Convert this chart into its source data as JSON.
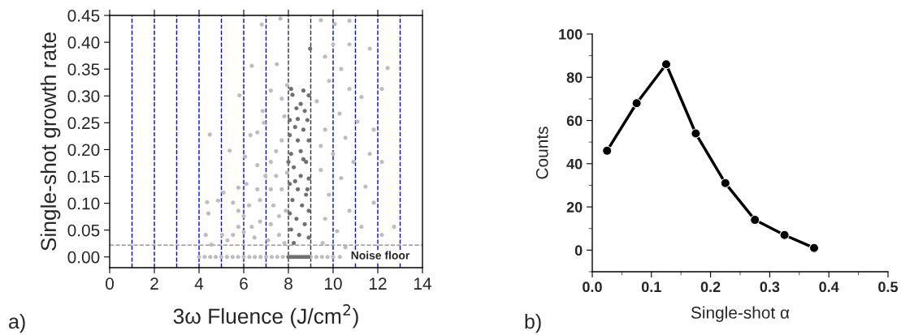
{
  "chart_data": [
    {
      "type": "scatter",
      "xlabel": "3ω Fluence (J/cm$^{2}$)",
      "ylabel": "Single-shot growth rate",
      "annotations": [
        "a)",
        "Noise floor"
      ],
      "xlim": [
        0,
        14
      ],
      "ylim": [
        -0.02,
        0.45
      ],
      "xticks": [
        0,
        2,
        4,
        6,
        8,
        10,
        12,
        14
      ],
      "yticks": [
        {
          "value": 0,
          "label": "0.00"
        },
        {
          "value": 0.05,
          "label": "0.05"
        },
        {
          "value": 0.1,
          "label": "0.10"
        },
        {
          "value": 0.15,
          "label": "0.15"
        },
        {
          "value": 0.2,
          "label": "0.20"
        },
        {
          "value": 0.25,
          "label": "0.25"
        },
        {
          "value": 0.3,
          "label": "0.30"
        },
        {
          "value": 0.35,
          "label": "0.35"
        },
        {
          "value": 0.4,
          "label": "0.40"
        },
        {
          "value": 0.45,
          "label": "0.45"
        }
      ],
      "marker": "circle",
      "grid": false,
      "legend": false,
      "ref_lines": [
        {
          "axis": "x",
          "value": 1,
          "color": "#0000ff",
          "line_style": "dashed"
        },
        {
          "axis": "x",
          "value": 2,
          "color": "#0000ff",
          "line_style": "dashed"
        },
        {
          "axis": "x",
          "value": 3,
          "color": "#0000ff",
          "line_style": "dashed"
        },
        {
          "axis": "x",
          "value": 4,
          "color": "#0000ff",
          "line_style": "dashed"
        },
        {
          "axis": "x",
          "value": 5,
          "color": "#0000ff",
          "line_style": "dashed"
        },
        {
          "axis": "x",
          "value": 6,
          "color": "#0000ff",
          "line_style": "dashed"
        },
        {
          "axis": "x",
          "value": 7,
          "color": "#0000ff",
          "line_style": "dashed"
        },
        {
          "axis": "x",
          "value": 8,
          "color": "#333333",
          "line_style": "dashed"
        },
        {
          "axis": "x",
          "value": 9,
          "color": "#333333",
          "line_style": "dashed"
        },
        {
          "axis": "x",
          "value": 10,
          "color": "#0000ff",
          "line_style": "dashed"
        },
        {
          "axis": "x",
          "value": 11,
          "color": "#0000ff",
          "line_style": "dashed"
        },
        {
          "axis": "x",
          "value": 12,
          "color": "#0000ff",
          "line_style": "dashed"
        },
        {
          "axis": "x",
          "value": 13,
          "color": "#0000ff",
          "line_style": "dashed"
        },
        {
          "axis": "y",
          "value": 0.022,
          "color": "#999999",
          "line_style": "dashed"
        }
      ],
      "series": [
        {
          "color": "#bdbdbd",
          "x": [
            4.48,
            5.37,
            5.81,
            6.36,
            6.81,
            7.48,
            7.64,
            7.94,
            4.36,
            4.85,
            4.42,
            4.3,
            4.55,
            5.03,
            5.09,
            5.52,
            5.76,
            6.06,
            6.3,
            6.61,
            6.85,
            6.91,
            7.21,
            7.7,
            7.82,
            7.21,
            7.45,
            7.7,
            6.97,
            6.61,
            6.24,
            6.0,
            5.76,
            5.52,
            5.27,
            6.36,
            6.73,
            7.21,
            7.58,
            7.82,
            7.09,
            6.48,
            6.0,
            7.33,
            7.7,
            7.94,
            7.21,
            6.73,
            7.88,
            7.58,
            5.76,
            6.12,
            6.61,
            7.45,
            9.45,
            10.0,
            9.64,
            10.36,
            9.82,
            10.73,
            11.27,
            10.29,
            11.09,
            11.82,
            9.64,
            10.55,
            10.0,
            10.91,
            11.64,
            9.45,
            10.36,
            11.45,
            12.18,
            9.82,
            10.73,
            11.82,
            9.64,
            10.18,
            11.27,
            12.18,
            12.73,
            10.73,
            12.18,
            12.44,
            9.27,
            9.45,
            11.64,
            10.73,
            10.07,
            9.53,
            10.55,
            4.0,
            4.25,
            4.5,
            4.75,
            5.0,
            5.25,
            5.5,
            5.75,
            6.0,
            6.25,
            6.5,
            6.75,
            7.0,
            7.25,
            7.5,
            7.75,
            8.0,
            9.0,
            9.25,
            9.5,
            9.75,
            10.0,
            10.3
          ],
          "values": [
            0.228,
            0.198,
            0.301,
            0.356,
            0.433,
            0.359,
            0.444,
            0.32,
            0.102,
            0.105,
            0.081,
            0.041,
            0.023,
            0.041,
            0.12,
            0.101,
            0.129,
            0.187,
            0.227,
            0.232,
            0.272,
            0.25,
            0.31,
            0.295,
            0.262,
            0.177,
            0.197,
            0.217,
            0.151,
            0.126,
            0.096,
            0.076,
            0.056,
            0.041,
            0.031,
            0.056,
            0.066,
            0.061,
            0.041,
            0.026,
            0.031,
            0.036,
            0.046,
            0.096,
            0.126,
            0.157,
            0.126,
            0.106,
            0.086,
            0.076,
            0.086,
            0.136,
            0.171,
            0.151,
            0.441,
            0.396,
            0.373,
            0.35,
            0.328,
            0.313,
            0.298,
            0.267,
            0.252,
            0.237,
            0.237,
            0.222,
            0.192,
            0.177,
            0.192,
            0.162,
            0.147,
            0.131,
            0.177,
            0.116,
            0.086,
            0.101,
            0.071,
            0.048,
            0.056,
            0.041,
            0.056,
            0.44,
            0.313,
            0.352,
            0.29,
            0.207,
            0.388,
            0.396,
            0.434,
            0.026,
            0.018,
            0,
            0,
            0,
            0,
            0,
            0,
            0,
            0,
            0,
            0,
            0,
            0,
            0,
            0,
            0,
            0,
            0,
            0,
            0,
            0,
            0,
            0,
            0
          ]
        },
        {
          "color": "#707070",
          "x": [
            8.97,
            8.12,
            8.18,
            8.67,
            8.91,
            8.55,
            8.36,
            8.73,
            8.06,
            8.85,
            8.3,
            8.67,
            8.06,
            8.42,
            8.91,
            8.12,
            8.55,
            8.79,
            8.24,
            8.55,
            8.91,
            8.06,
            8.42,
            8.79,
            8.18,
            8.61,
            8.91,
            8.06,
            8.36,
            8.73,
            8.12,
            8.48,
            8.91,
            8.24,
            8.67,
            8.3,
            8.85,
            8.0,
            8.42,
            8.0,
            8.1,
            8.2,
            8.3,
            8.4,
            8.5,
            8.6,
            8.7,
            8.8,
            8.9
          ],
          "values": [
            0.388,
            0.313,
            0.302,
            0.31,
            0.301,
            0.285,
            0.277,
            0.272,
            0.255,
            0.255,
            0.242,
            0.237,
            0.227,
            0.217,
            0.217,
            0.192,
            0.197,
            0.177,
            0.167,
            0.151,
            0.146,
            0.136,
            0.126,
            0.116,
            0.106,
            0.096,
            0.086,
            0.081,
            0.071,
            0.061,
            0.051,
            0.041,
            0.036,
            0.026,
            0.182,
            0.141,
            0.126,
            0.177,
            0.257,
            0,
            0,
            0,
            0,
            0,
            0,
            0,
            0,
            0,
            0
          ]
        }
      ]
    },
    {
      "type": "line",
      "xlabel": "Single-shot α",
      "ylabel": "Counts",
      "annotations": [
        "b)"
      ],
      "x": [
        0.025,
        0.075,
        0.125,
        0.175,
        0.225,
        0.275,
        0.325,
        0.375
      ],
      "values": [
        46,
        68,
        86,
        54,
        31,
        14,
        7,
        1
      ],
      "xlim": [
        0,
        0.5
      ],
      "ylim": [
        -10,
        100
      ],
      "xticks": [
        {
          "value": 0,
          "label": "0.0"
        },
        0.1,
        0.2,
        0.3,
        0.4,
        0.5
      ],
      "yticks": [
        0,
        20,
        40,
        60,
        80,
        100
      ],
      "marker": "circle",
      "line_style": "solid",
      "grid": false,
      "legend": false,
      "color": "#000000"
    }
  ]
}
